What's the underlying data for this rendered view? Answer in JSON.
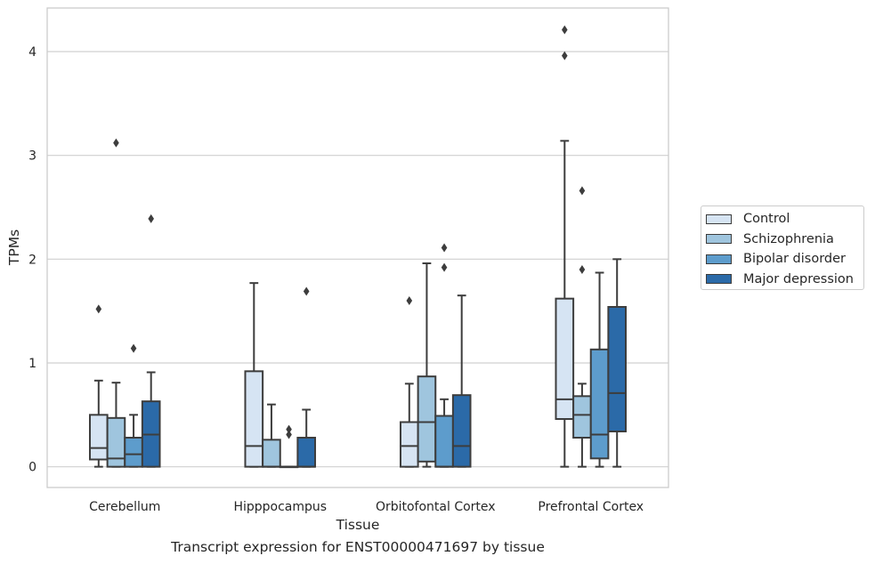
{
  "chart_data": {
    "type": "box",
    "xlabel": "Tissue",
    "ylabel": "TPMs",
    "caption": "Transcript expression for ENST00000471697 by tissue",
    "ylim": [
      -0.2,
      4.42
    ],
    "yticks": [
      0,
      1,
      2,
      3,
      4
    ],
    "grid": "horizontal",
    "legend_position": "right",
    "categories": [
      "Cerebellum",
      "Hipppocampus",
      "Orbitofontal Cortex",
      "Prefrontal Cortex"
    ],
    "series": [
      {
        "name": "Control",
        "color": "#d6e4f3",
        "boxes": [
          {
            "low": 0.0,
            "q1": 0.07,
            "median": 0.18,
            "q3": 0.5,
            "high": 0.83,
            "outliers": [
              1.52
            ]
          },
          {
            "low": 0.0,
            "q1": 0.0,
            "median": 0.2,
            "q3": 0.92,
            "high": 1.77,
            "outliers": []
          },
          {
            "low": 0.0,
            "q1": 0.0,
            "median": 0.2,
            "q3": 0.43,
            "high": 0.8,
            "outliers": [
              1.6
            ]
          },
          {
            "low": 0.0,
            "q1": 0.46,
            "median": 0.65,
            "q3": 1.62,
            "high": 3.14,
            "outliers": [
              3.96,
              4.21
            ]
          }
        ]
      },
      {
        "name": "Schizophrenia",
        "color": "#9fc5de",
        "boxes": [
          {
            "low": 0.0,
            "q1": 0.0,
            "median": 0.08,
            "q3": 0.47,
            "high": 0.81,
            "outliers": [
              3.12
            ]
          },
          {
            "low": 0.0,
            "q1": 0.0,
            "median": 0.0,
            "q3": 0.26,
            "high": 0.6,
            "outliers": []
          },
          {
            "low": 0.0,
            "q1": 0.05,
            "median": 0.43,
            "q3": 0.87,
            "high": 1.96,
            "outliers": []
          },
          {
            "low": 0.0,
            "q1": 0.28,
            "median": 0.5,
            "q3": 0.68,
            "high": 0.8,
            "outliers": [
              1.9,
              2.66
            ]
          }
        ]
      },
      {
        "name": "Bipolar disorder",
        "color": "#5d9ccc",
        "boxes": [
          {
            "low": 0.0,
            "q1": 0.0,
            "median": 0.12,
            "q3": 0.28,
            "high": 0.5,
            "outliers": [
              1.14
            ]
          },
          {
            "low": 0.0,
            "q1": 0.0,
            "median": 0.0,
            "q3": 0.0,
            "high": 0.0,
            "outliers": [
              0.31,
              0.36
            ]
          },
          {
            "low": 0.0,
            "q1": 0.0,
            "median": 0.0,
            "q3": 0.49,
            "high": 0.65,
            "outliers": [
              1.92,
              2.11
            ]
          },
          {
            "low": 0.0,
            "q1": 0.08,
            "median": 0.31,
            "q3": 1.13,
            "high": 1.87,
            "outliers": []
          }
        ]
      },
      {
        "name": "Major depression",
        "color": "#2b6aa8",
        "boxes": [
          {
            "low": 0.0,
            "q1": 0.0,
            "median": 0.31,
            "q3": 0.63,
            "high": 0.91,
            "outliers": [
              2.39
            ]
          },
          {
            "low": 0.0,
            "q1": 0.0,
            "median": 0.0,
            "q3": 0.28,
            "high": 0.55,
            "outliers": [
              1.69
            ]
          },
          {
            "low": 0.0,
            "q1": 0.0,
            "median": 0.2,
            "q3": 0.69,
            "high": 1.65,
            "outliers": []
          },
          {
            "low": 0.0,
            "q1": 0.34,
            "median": 0.71,
            "q3": 1.54,
            "high": 2.0,
            "outliers": []
          }
        ]
      }
    ]
  }
}
